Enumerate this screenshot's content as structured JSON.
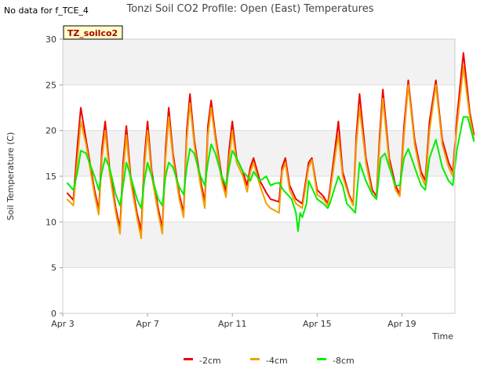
{
  "corner_note": "No data for f_TCE_4",
  "chart_data": {
    "type": "line",
    "title": "Tonzi Soil CO2 Profile: Open (East) Temperatures",
    "xlabel": "Time",
    "ylabel": "Soil Temperature (C)",
    "site_badge": "TZ_soilco2",
    "x_unit": "day of April",
    "xlim": [
      3,
      21.5
    ],
    "ylim": [
      0,
      30
    ],
    "x_ticks": [
      {
        "value": 3,
        "label": "Apr 3"
      },
      {
        "value": 7,
        "label": "Apr 7"
      },
      {
        "value": 11,
        "label": "Apr 11"
      },
      {
        "value": 15,
        "label": "Apr 15"
      },
      {
        "value": 19,
        "label": "Apr 19"
      }
    ],
    "y_ticks": [
      0,
      5,
      10,
      15,
      20,
      25,
      30
    ],
    "grid": true,
    "bands": "alternating grey",
    "legend_position": "bottom-center",
    "series": [
      {
        "name": "-2cm",
        "color": "#ee0000",
        "points": [
          [
            3.2,
            13.2
          ],
          [
            3.5,
            12.4
          ],
          [
            3.7,
            18.5
          ],
          [
            3.85,
            22.5
          ],
          [
            4.1,
            19.0
          ],
          [
            4.5,
            13.5
          ],
          [
            4.7,
            11.3
          ],
          [
            4.85,
            18.0
          ],
          [
            5.0,
            21.0
          ],
          [
            5.2,
            16.0
          ],
          [
            5.5,
            11.5
          ],
          [
            5.7,
            9.3
          ],
          [
            5.85,
            16.5
          ],
          [
            6.0,
            20.5
          ],
          [
            6.2,
            15.0
          ],
          [
            6.5,
            11.0
          ],
          [
            6.7,
            9.0
          ],
          [
            6.85,
            17.0
          ],
          [
            7.0,
            21.0
          ],
          [
            7.2,
            15.5
          ],
          [
            7.5,
            11.5
          ],
          [
            7.7,
            9.3
          ],
          [
            7.85,
            18.0
          ],
          [
            8.0,
            22.5
          ],
          [
            8.2,
            17.5
          ],
          [
            8.5,
            13.0
          ],
          [
            8.7,
            11.0
          ],
          [
            8.85,
            20.0
          ],
          [
            9.0,
            24.0
          ],
          [
            9.2,
            19.0
          ],
          [
            9.5,
            14.5
          ],
          [
            9.7,
            12.2
          ],
          [
            9.85,
            20.5
          ],
          [
            10.0,
            23.3
          ],
          [
            10.2,
            19.5
          ],
          [
            10.5,
            15.0
          ],
          [
            10.7,
            13.3
          ],
          [
            10.85,
            18.0
          ],
          [
            11.0,
            21.0
          ],
          [
            11.2,
            17.0
          ],
          [
            11.5,
            15.5
          ],
          [
            11.7,
            14.0
          ],
          [
            11.85,
            16.0
          ],
          [
            12.0,
            17.0
          ],
          [
            12.3,
            14.5
          ],
          [
            12.6,
            13.2
          ],
          [
            12.8,
            12.5
          ],
          [
            13.2,
            12.2
          ],
          [
            13.35,
            16.0
          ],
          [
            13.5,
            17.0
          ],
          [
            13.7,
            14.0
          ],
          [
            14.0,
            12.5
          ],
          [
            14.3,
            12.0
          ],
          [
            14.6,
            16.5
          ],
          [
            14.75,
            17.0
          ],
          [
            15.0,
            13.5
          ],
          [
            15.3,
            12.8
          ],
          [
            15.5,
            12.0
          ],
          [
            15.6,
            13.5
          ],
          [
            15.9,
            19.0
          ],
          [
            16.0,
            21.0
          ],
          [
            16.2,
            15.5
          ],
          [
            16.5,
            13.0
          ],
          [
            16.7,
            12.0
          ],
          [
            16.85,
            19.5
          ],
          [
            17.0,
            24.0
          ],
          [
            17.3,
            17.0
          ],
          [
            17.6,
            13.5
          ],
          [
            17.8,
            12.8
          ],
          [
            17.95,
            19.5
          ],
          [
            18.1,
            24.5
          ],
          [
            18.4,
            17.0
          ],
          [
            18.7,
            14.0
          ],
          [
            18.9,
            13.0
          ],
          [
            19.1,
            20.5
          ],
          [
            19.3,
            25.5
          ],
          [
            19.6,
            19.0
          ],
          [
            19.9,
            15.5
          ],
          [
            20.1,
            14.5
          ],
          [
            20.3,
            21.0
          ],
          [
            20.6,
            25.5
          ],
          [
            20.9,
            19.0
          ],
          [
            21.2,
            16.5
          ],
          [
            21.4,
            15.5
          ],
          [
            21.6,
            21.5
          ],
          [
            21.9,
            28.5
          ],
          [
            22.2,
            22.0
          ],
          [
            22.4,
            19.5
          ]
        ]
      },
      {
        "name": "-4cm",
        "color": "#f0a000",
        "points": [
          [
            3.2,
            12.5
          ],
          [
            3.5,
            11.8
          ],
          [
            3.7,
            17.0
          ],
          [
            3.85,
            21.0
          ],
          [
            4.1,
            18.5
          ],
          [
            4.5,
            13.0
          ],
          [
            4.7,
            10.8
          ],
          [
            4.85,
            17.0
          ],
          [
            5.0,
            20.0
          ],
          [
            5.2,
            15.5
          ],
          [
            5.5,
            11.0
          ],
          [
            5.7,
            8.7
          ],
          [
            5.85,
            15.5
          ],
          [
            6.0,
            19.5
          ],
          [
            6.2,
            14.5
          ],
          [
            6.5,
            10.5
          ],
          [
            6.7,
            8.2
          ],
          [
            6.85,
            16.0
          ],
          [
            7.0,
            20.0
          ],
          [
            7.2,
            15.0
          ],
          [
            7.5,
            11.0
          ],
          [
            7.7,
            8.7
          ],
          [
            7.85,
            17.0
          ],
          [
            8.0,
            21.5
          ],
          [
            8.2,
            17.0
          ],
          [
            8.5,
            12.5
          ],
          [
            8.7,
            10.5
          ],
          [
            8.85,
            19.0
          ],
          [
            9.0,
            23.0
          ],
          [
            9.2,
            18.5
          ],
          [
            9.5,
            14.0
          ],
          [
            9.7,
            11.5
          ],
          [
            9.85,
            19.5
          ],
          [
            10.0,
            22.5
          ],
          [
            10.2,
            19.0
          ],
          [
            10.5,
            14.5
          ],
          [
            10.7,
            12.7
          ],
          [
            10.85,
            17.0
          ],
          [
            11.0,
            20.0
          ],
          [
            11.2,
            16.5
          ],
          [
            11.5,
            15.0
          ],
          [
            11.7,
            13.3
          ],
          [
            11.85,
            15.5
          ],
          [
            12.0,
            16.5
          ],
          [
            12.3,
            14.0
          ],
          [
            12.6,
            12.0
          ],
          [
            12.8,
            11.5
          ],
          [
            13.2,
            11.0
          ],
          [
            13.35,
            15.5
          ],
          [
            13.5,
            16.5
          ],
          [
            13.7,
            13.5
          ],
          [
            14.0,
            12.0
          ],
          [
            14.3,
            11.5
          ],
          [
            14.6,
            16.0
          ],
          [
            14.75,
            16.8
          ],
          [
            15.0,
            13.0
          ],
          [
            15.3,
            12.5
          ],
          [
            15.5,
            11.8
          ],
          [
            15.6,
            13.0
          ],
          [
            15.9,
            18.0
          ],
          [
            16.0,
            19.5
          ],
          [
            16.2,
            15.0
          ],
          [
            16.5,
            12.8
          ],
          [
            16.7,
            11.8
          ],
          [
            16.85,
            18.5
          ],
          [
            17.0,
            22.5
          ],
          [
            17.3,
            16.5
          ],
          [
            17.6,
            13.0
          ],
          [
            17.8,
            12.5
          ],
          [
            17.95,
            18.5
          ],
          [
            18.1,
            23.5
          ],
          [
            18.4,
            16.5
          ],
          [
            18.7,
            13.5
          ],
          [
            18.9,
            12.8
          ],
          [
            19.1,
            19.5
          ],
          [
            19.3,
            25.0
          ],
          [
            19.6,
            18.5
          ],
          [
            19.9,
            15.0
          ],
          [
            20.1,
            14.0
          ],
          [
            20.3,
            20.0
          ],
          [
            20.6,
            25.0
          ],
          [
            20.9,
            18.5
          ],
          [
            21.2,
            16.0
          ],
          [
            21.4,
            15.0
          ],
          [
            21.6,
            20.5
          ],
          [
            21.9,
            27.0
          ],
          [
            22.2,
            21.5
          ],
          [
            22.4,
            19.0
          ]
        ]
      },
      {
        "name": "-8cm",
        "color": "#00ee00",
        "points": [
          [
            3.2,
            14.3
          ],
          [
            3.5,
            13.5
          ],
          [
            3.7,
            15.5
          ],
          [
            3.85,
            17.8
          ],
          [
            4.1,
            17.5
          ],
          [
            4.5,
            15.0
          ],
          [
            4.7,
            13.5
          ],
          [
            4.85,
            15.5
          ],
          [
            5.0,
            17.0
          ],
          [
            5.2,
            16.0
          ],
          [
            5.5,
            13.0
          ],
          [
            5.7,
            11.8
          ],
          [
            5.85,
            14.0
          ],
          [
            6.0,
            16.5
          ],
          [
            6.2,
            15.0
          ],
          [
            6.5,
            12.5
          ],
          [
            6.7,
            11.5
          ],
          [
            6.85,
            14.5
          ],
          [
            7.0,
            16.5
          ],
          [
            7.2,
            15.0
          ],
          [
            7.5,
            12.5
          ],
          [
            7.7,
            11.8
          ],
          [
            7.85,
            15.0
          ],
          [
            8.0,
            16.5
          ],
          [
            8.2,
            16.0
          ],
          [
            8.5,
            13.8
          ],
          [
            8.7,
            13.0
          ],
          [
            8.85,
            16.0
          ],
          [
            9.0,
            18.0
          ],
          [
            9.2,
            17.5
          ],
          [
            9.5,
            15.0
          ],
          [
            9.7,
            14.0
          ],
          [
            9.85,
            16.5
          ],
          [
            10.0,
            18.5
          ],
          [
            10.2,
            17.5
          ],
          [
            10.5,
            15.0
          ],
          [
            10.7,
            14.0
          ],
          [
            10.85,
            16.0
          ],
          [
            11.0,
            17.8
          ],
          [
            11.2,
            17.0
          ],
          [
            11.5,
            15.5
          ],
          [
            11.7,
            15.0
          ],
          [
            11.85,
            14.5
          ],
          [
            12.0,
            15.5
          ],
          [
            12.3,
            14.5
          ],
          [
            12.6,
            15.0
          ],
          [
            12.8,
            14.0
          ],
          [
            13.0,
            14.2
          ],
          [
            13.2,
            14.3
          ],
          [
            13.4,
            13.5
          ],
          [
            13.6,
            13.0
          ],
          [
            13.8,
            12.5
          ],
          [
            14.0,
            11.0
          ],
          [
            14.1,
            9.0
          ],
          [
            14.2,
            11.0
          ],
          [
            14.3,
            10.5
          ],
          [
            14.5,
            12.0
          ],
          [
            14.6,
            14.5
          ],
          [
            14.8,
            13.5
          ],
          [
            15.0,
            12.5
          ],
          [
            15.3,
            12.0
          ],
          [
            15.5,
            11.5
          ],
          [
            15.6,
            12.0
          ],
          [
            15.8,
            13.5
          ],
          [
            16.0,
            15.0
          ],
          [
            16.2,
            14.0
          ],
          [
            16.4,
            12.0
          ],
          [
            16.6,
            11.5
          ],
          [
            16.8,
            11.0
          ],
          [
            17.0,
            16.5
          ],
          [
            17.3,
            14.5
          ],
          [
            17.6,
            13.0
          ],
          [
            17.8,
            12.5
          ],
          [
            18.0,
            17.0
          ],
          [
            18.2,
            17.5
          ],
          [
            18.4,
            16.0
          ],
          [
            18.7,
            14.0
          ],
          [
            18.9,
            14.0
          ],
          [
            19.1,
            17.0
          ],
          [
            19.3,
            18.0
          ],
          [
            19.6,
            16.0
          ],
          [
            19.9,
            14.0
          ],
          [
            20.1,
            13.5
          ],
          [
            20.3,
            17.0
          ],
          [
            20.6,
            19.0
          ],
          [
            20.9,
            16.0
          ],
          [
            21.2,
            14.5
          ],
          [
            21.4,
            14.0
          ],
          [
            21.6,
            18.0
          ],
          [
            21.9,
            21.5
          ],
          [
            22.1,
            21.5
          ],
          [
            22.4,
            18.8
          ]
        ]
      }
    ]
  }
}
